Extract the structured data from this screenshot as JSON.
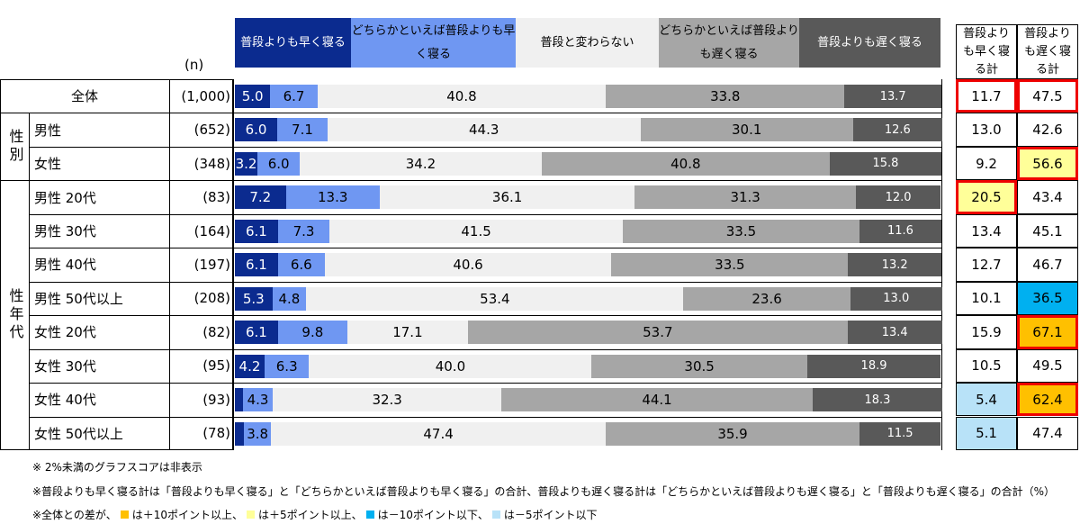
{
  "chart_data": {
    "type": "bar",
    "orientation": "horizontal",
    "stacked": true,
    "unit": "%",
    "n_label": "(n)",
    "legend": [
      {
        "name": "普段よりも早く寝る",
        "color": "#0b2b8f"
      },
      {
        "name": "どちらかといえば普段よりも早く寝る",
        "color": "#6f97f2"
      },
      {
        "name": "普段と変わらない",
        "color": "#f0f0f0"
      },
      {
        "name": "どちらかといえば普段よりも遅く寝る",
        "color": "#a6a6a6"
      },
      {
        "name": "普段よりも遅く寝る",
        "color": "#595959"
      }
    ],
    "totals_headers": [
      "普段よりも早く寝る計",
      "普段よりも遅く寝る計"
    ],
    "groups": [
      {
        "label": "性別",
        "rows": [
          1,
          2
        ]
      },
      {
        "label": "性年代",
        "rows": [
          3,
          4,
          5,
          6,
          7,
          8,
          9,
          10
        ]
      }
    ],
    "rows": [
      {
        "label": "全体",
        "n": "(1,000)",
        "values": [
          5.0,
          6.7,
          40.8,
          33.8,
          13.7
        ],
        "totals": [
          "11.7",
          "47.5"
        ],
        "hl": [
          "base",
          "base"
        ]
      },
      {
        "label": "男性",
        "n": "(652)",
        "values": [
          6.0,
          7.1,
          44.3,
          30.1,
          12.6
        ],
        "totals": [
          "13.0",
          "42.6"
        ],
        "hl": [
          "",
          ""
        ]
      },
      {
        "label": "女性",
        "n": "(348)",
        "values": [
          3.2,
          6.0,
          34.2,
          40.8,
          15.8
        ],
        "totals": [
          "9.2",
          "56.6"
        ],
        "hl": [
          "",
          "plus5"
        ]
      },
      {
        "label": "男性 20代",
        "n": "(83)",
        "values": [
          7.2,
          13.3,
          36.1,
          31.3,
          12.0
        ],
        "totals": [
          "20.5",
          "43.4"
        ],
        "hl": [
          "plus5",
          ""
        ]
      },
      {
        "label": "男性 30代",
        "n": "(164)",
        "values": [
          6.1,
          7.3,
          41.5,
          33.5,
          11.6
        ],
        "totals": [
          "13.4",
          "45.1"
        ],
        "hl": [
          "",
          ""
        ]
      },
      {
        "label": "男性 40代",
        "n": "(197)",
        "values": [
          6.1,
          6.6,
          40.6,
          33.5,
          13.2
        ],
        "totals": [
          "12.7",
          "46.7"
        ],
        "hl": [
          "",
          ""
        ]
      },
      {
        "label": "男性 50代以上",
        "n": "(208)",
        "values": [
          5.3,
          4.8,
          53.4,
          23.6,
          13.0
        ],
        "totals": [
          "10.1",
          "36.5"
        ],
        "hl": [
          "",
          "minus10"
        ]
      },
      {
        "label": "女性 20代",
        "n": "(82)",
        "values": [
          6.1,
          9.8,
          17.1,
          53.7,
          13.4
        ],
        "totals": [
          "15.9",
          "67.1"
        ],
        "hl": [
          "",
          "plus10"
        ]
      },
      {
        "label": "女性 30代",
        "n": "(95)",
        "values": [
          4.2,
          6.3,
          40.0,
          30.5,
          18.9
        ],
        "totals": [
          "10.5",
          "49.5"
        ],
        "hl": [
          "",
          ""
        ]
      },
      {
        "label": "女性 40代",
        "n": "(93)",
        "values": [
          1.1,
          4.3,
          32.3,
          44.1,
          18.3
        ],
        "totals": [
          "5.4",
          "62.4"
        ],
        "hl": [
          "minus5",
          "plus10"
        ]
      },
      {
        "label": "女性 50代以上",
        "n": "(78)",
        "values": [
          1.3,
          3.8,
          47.4,
          35.9,
          11.5
        ],
        "totals": [
          "5.1",
          "47.4"
        ],
        "hl": [
          "minus5",
          ""
        ]
      }
    ],
    "hide_below": 2,
    "highlight_colors": {
      "plus10": "#ffc000",
      "plus5": "#ffff99",
      "minus10": "#00b0f0",
      "minus5": "#b8e2f8"
    }
  },
  "notes": {
    "n1": "※ 2%未満のグラフスコアは非表示",
    "n2": "※普段よりも早く寝る計は「普段よりも早く寝る」と「どちらかといえば普段よりも早く寝る」の合計、普段よりも遅く寝る計は「どちらかといえば普段よりも遅く寝る」と「普段よりも遅く寝る」の合計（%）",
    "n3a": "※全体との差が、",
    "n3b": "は＋10ポイント以上、",
    "n3c": "は＋5ポイント以上、",
    "n3d": "は－10ポイント以下、",
    "n3e": "は－5ポイント以下"
  }
}
